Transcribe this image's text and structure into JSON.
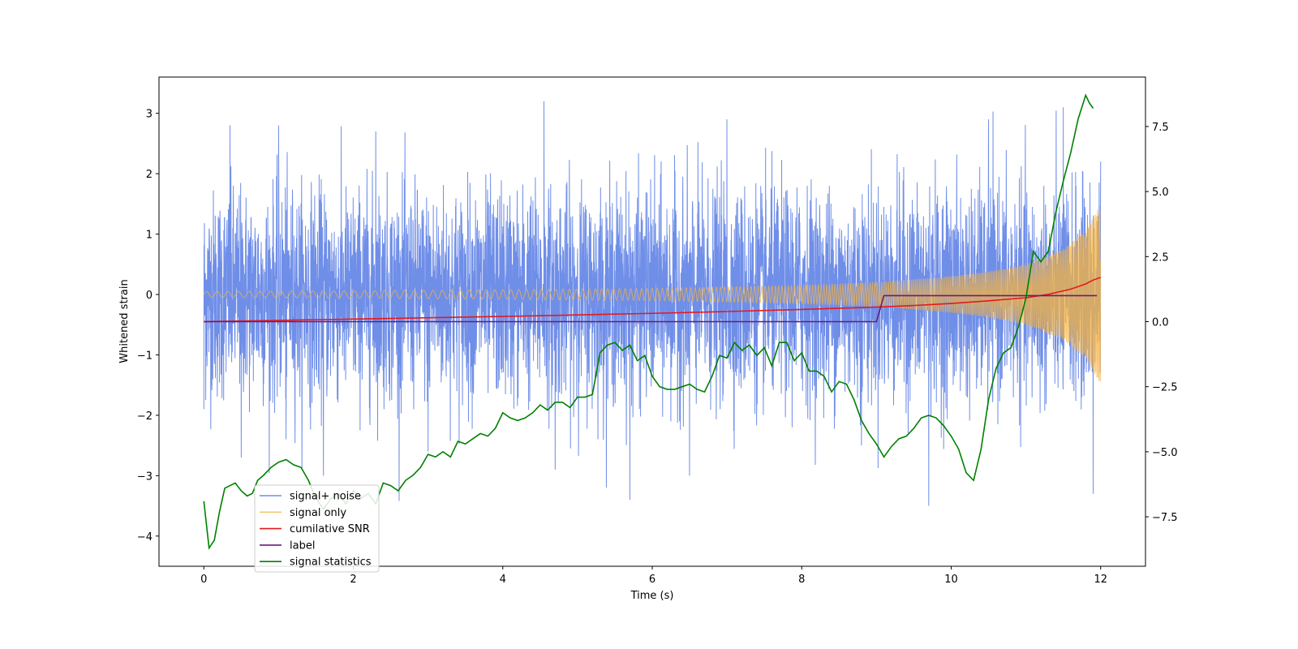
{
  "chart_data": {
    "type": "line",
    "title": "",
    "xlabel": "Time (s)",
    "ylabel": "Whitened strain",
    "y2label": "",
    "xlim": [
      -0.6,
      12.6
    ],
    "ylim": [
      -4.5,
      3.6
    ],
    "y2lim": [
      -9.4,
      9.4
    ],
    "xticks": [
      0,
      2,
      4,
      6,
      8,
      10,
      12
    ],
    "xtick_labels": [
      "0",
      "2",
      "4",
      "6",
      "8",
      "10",
      "12"
    ],
    "yticks": [
      -4,
      -3,
      -2,
      -1,
      0,
      1,
      2,
      3
    ],
    "ytick_labels": [
      "−4",
      "−3",
      "−2",
      "−1",
      "0",
      "1",
      "2",
      "3"
    ],
    "y2ticks": [
      -7.5,
      -5.0,
      -2.5,
      0.0,
      2.5,
      5.0,
      7.5
    ],
    "y2tick_labels": [
      "−7.5",
      "−5.0",
      "−2.5",
      "0.0",
      "2.5",
      "5.0",
      "7.5"
    ],
    "grid": false,
    "legend_position": "lower-left",
    "colors": {
      "noise": "#6f8ee8",
      "signal": "#f5b342",
      "snr": "#e41a1c",
      "label": "#6a1b7a",
      "stat": "#008000"
    },
    "series": [
      {
        "name": "signal+ noise",
        "axis": "left",
        "kind": "noise",
        "t_range": [
          0,
          12
        ],
        "sigma": 1.0,
        "y_min": -3.5,
        "y_max": 3.2,
        "values": [
          [
            0.0,
            2.4
          ],
          [
            0.0,
            -1.9
          ],
          [
            0.35,
            2.8
          ],
          [
            0.5,
            -2.7
          ],
          [
            1.0,
            2.8
          ],
          [
            1.1,
            -2.4
          ],
          [
            1.6,
            -3.0
          ],
          [
            2.3,
            2.7
          ],
          [
            3.0,
            -2.6
          ],
          [
            4.55,
            3.2
          ],
          [
            4.7,
            -2.9
          ],
          [
            5.7,
            -3.4
          ],
          [
            6.5,
            -3.0
          ],
          [
            7.0,
            2.9
          ],
          [
            8.8,
            -2.5
          ],
          [
            9.7,
            -3.5
          ],
          [
            10.5,
            2.9
          ],
          [
            11.5,
            3.1
          ],
          [
            11.9,
            -3.3
          ],
          [
            12.0,
            2.2
          ]
        ]
      },
      {
        "name": "signal only",
        "axis": "left",
        "kind": "chirp",
        "t_range": [
          0,
          12
        ],
        "amp_start": 0.05,
        "amp_end": 1.5,
        "amplitude_envelope": [
          [
            0,
            0.05
          ],
          [
            2,
            0.06
          ],
          [
            4,
            0.08
          ],
          [
            6,
            0.1
          ],
          [
            8,
            0.15
          ],
          [
            9,
            0.2
          ],
          [
            10,
            0.3
          ],
          [
            10.5,
            0.38
          ],
          [
            11,
            0.5
          ],
          [
            11.5,
            0.75
          ],
          [
            11.8,
            1.05
          ],
          [
            12,
            1.5
          ]
        ]
      },
      {
        "name": "cumilative SNR",
        "axis": "right",
        "x": [
          0,
          1,
          2,
          3,
          4,
          5,
          6,
          7,
          8,
          9,
          9.5,
          10,
          10.5,
          11,
          11.3,
          11.6,
          11.8,
          11.9,
          12
        ],
        "values": [
          0.0,
          0.05,
          0.1,
          0.15,
          0.2,
          0.26,
          0.32,
          0.39,
          0.47,
          0.56,
          0.62,
          0.7,
          0.8,
          0.92,
          1.05,
          1.25,
          1.45,
          1.6,
          1.7
        ]
      },
      {
        "name": "label",
        "axis": "right",
        "x": [
          0,
          9.0,
          9.1,
          11.95
        ],
        "values": [
          0,
          0,
          1,
          1
        ]
      },
      {
        "name": "signal statistics",
        "axis": "right",
        "x": [
          0.0,
          0.07,
          0.14,
          0.21,
          0.28,
          0.35,
          0.42,
          0.5,
          0.58,
          0.65,
          0.72,
          0.8,
          0.9,
          1.0,
          1.1,
          1.2,
          1.3,
          1.4,
          1.5,
          1.6,
          1.7,
          1.8,
          1.9,
          2.0,
          2.1,
          2.2,
          2.3,
          2.4,
          2.5,
          2.6,
          2.7,
          2.8,
          2.9,
          3.0,
          3.1,
          3.2,
          3.3,
          3.4,
          3.5,
          3.6,
          3.7,
          3.8,
          3.9,
          4.0,
          4.1,
          4.2,
          4.3,
          4.4,
          4.5,
          4.6,
          4.7,
          4.8,
          4.9,
          5.0,
          5.1,
          5.2,
          5.3,
          5.4,
          5.5,
          5.6,
          5.7,
          5.8,
          5.9,
          6.0,
          6.1,
          6.2,
          6.3,
          6.4,
          6.5,
          6.6,
          6.7,
          6.8,
          6.9,
          7.0,
          7.1,
          7.2,
          7.3,
          7.4,
          7.5,
          7.6,
          7.7,
          7.8,
          7.9,
          8.0,
          8.1,
          8.2,
          8.3,
          8.4,
          8.5,
          8.6,
          8.7,
          8.8,
          8.9,
          9.0,
          9.1,
          9.2,
          9.3,
          9.4,
          9.5,
          9.6,
          9.7,
          9.8,
          9.9,
          10.0,
          10.1,
          10.2,
          10.3,
          10.4,
          10.5,
          10.6,
          10.7,
          10.8,
          10.9,
          11.0,
          11.1,
          11.2,
          11.3,
          11.4,
          11.5,
          11.6,
          11.7,
          11.8,
          11.85,
          11.9
        ],
        "values": [
          -6.9,
          -8.7,
          -8.4,
          -7.3,
          -6.4,
          -6.3,
          -6.2,
          -6.5,
          -6.7,
          -6.6,
          -6.1,
          -5.9,
          -5.6,
          -5.4,
          -5.3,
          -5.5,
          -5.6,
          -6.1,
          -6.8,
          -7.2,
          -6.8,
          -6.6,
          -7.0,
          -6.5,
          -6.8,
          -6.6,
          -7.0,
          -6.2,
          -6.3,
          -6.5,
          -6.1,
          -5.9,
          -5.6,
          -5.1,
          -5.2,
          -5.0,
          -5.2,
          -4.6,
          -4.7,
          -4.5,
          -4.3,
          -4.4,
          -4.1,
          -3.5,
          -3.7,
          -3.8,
          -3.7,
          -3.5,
          -3.2,
          -3.4,
          -3.1,
          -3.1,
          -3.3,
          -2.9,
          -2.9,
          -2.8,
          -1.2,
          -0.9,
          -0.8,
          -1.1,
          -0.9,
          -1.5,
          -1.3,
          -2.1,
          -2.5,
          -2.6,
          -2.6,
          -2.5,
          -2.4,
          -2.6,
          -2.7,
          -2.1,
          -1.3,
          -1.4,
          -0.8,
          -1.1,
          -0.9,
          -1.3,
          -1.0,
          -1.7,
          -0.8,
          -0.8,
          -1.5,
          -1.2,
          -1.9,
          -1.9,
          -2.1,
          -2.7,
          -2.3,
          -2.4,
          -3.0,
          -3.8,
          -4.3,
          -4.7,
          -5.2,
          -4.8,
          -4.5,
          -4.4,
          -4.1,
          -3.7,
          -3.6,
          -3.7,
          -4.0,
          -4.4,
          -4.9,
          -5.8,
          -6.1,
          -4.9,
          -3.0,
          -1.8,
          -1.2,
          -1.0,
          -0.2,
          0.9,
          2.7,
          2.3,
          2.7,
          4.2,
          5.4,
          6.5,
          7.8,
          8.7,
          8.4,
          8.2
        ]
      }
    ]
  }
}
